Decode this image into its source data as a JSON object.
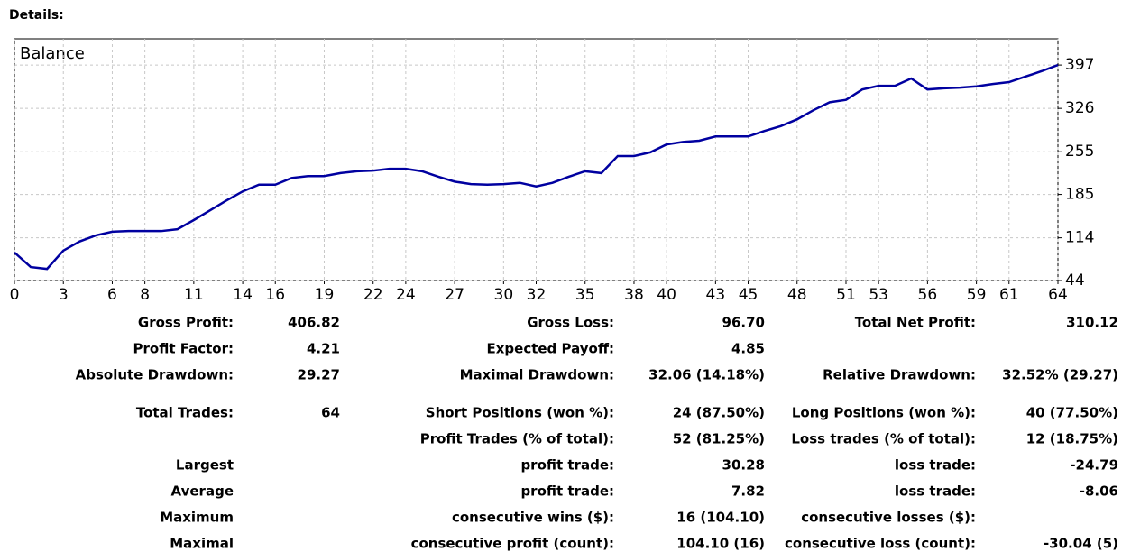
{
  "header": {
    "title": "Details:"
  },
  "chart_data": {
    "type": "line",
    "title": "Balance",
    "x": [
      0,
      1,
      2,
      3,
      4,
      5,
      6,
      7,
      8,
      9,
      10,
      11,
      12,
      13,
      14,
      15,
      16,
      17,
      18,
      19,
      20,
      21,
      22,
      23,
      24,
      25,
      26,
      27,
      28,
      29,
      30,
      31,
      32,
      33,
      34,
      35,
      36,
      37,
      38,
      39,
      40,
      41,
      42,
      43,
      44,
      45,
      46,
      47,
      48,
      49,
      50,
      51,
      52,
      53,
      54,
      55,
      56,
      57,
      58,
      59,
      60,
      61,
      62,
      63,
      64
    ],
    "series": [
      {
        "name": "Balance",
        "color": "#0000a0",
        "values": [
          90,
          66,
          63,
          93,
          108,
          118,
          124,
          125,
          125,
          125,
          128,
          143,
          159,
          175,
          190,
          201,
          201,
          212,
          215,
          215,
          220,
          223,
          224,
          227,
          227,
          223,
          214,
          206,
          202,
          201,
          202,
          204,
          198,
          204,
          214,
          223,
          220,
          248,
          248,
          254,
          267,
          271,
          273,
          280,
          280,
          280,
          289,
          297,
          308,
          323,
          336,
          340,
          357,
          363,
          363,
          375,
          357,
          359,
          360,
          362,
          366,
          369,
          378,
          387,
          397
        ]
      }
    ],
    "xlim": [
      0,
      64
    ],
    "xticks": [
      0,
      3,
      6,
      8,
      11,
      14,
      16,
      19,
      22,
      24,
      27,
      30,
      32,
      35,
      38,
      40,
      43,
      45,
      48,
      51,
      53,
      56,
      59,
      61,
      64
    ],
    "ylim": [
      44,
      440
    ],
    "yticks": [
      44,
      114,
      185,
      255,
      326,
      397
    ],
    "grid": true
  },
  "table": {
    "rows": [
      [
        "Gross Profit:",
        "406.82",
        "Gross Loss:",
        "96.70",
        "Total Net Profit:",
        "310.12"
      ],
      [
        "Profit Factor:",
        "4.21",
        "Expected Payoff:",
        "4.85",
        null,
        null
      ],
      [
        "Absolute Drawdown:",
        "29.27",
        "Maximal Drawdown:",
        "32.06 (14.18%)",
        "Relative Drawdown:",
        "32.52% (29.27)"
      ],
      [
        "Total Trades:",
        "64",
        "Short Positions (won %):",
        "24 (87.50%)",
        "Long Positions (won %):",
        "40 (77.50%)"
      ],
      [
        null,
        null,
        "Profit Trades (% of total):",
        "52 (81.25%)",
        "Loss trades (% of total):",
        "12 (18.75%)"
      ],
      [
        "Largest",
        null,
        "profit trade:",
        "30.28",
        "loss trade:",
        "-24.79"
      ],
      [
        "Average",
        null,
        "profit trade:",
        "7.82",
        "loss trade:",
        "-8.06"
      ],
      [
        "Maximum",
        null,
        "consecutive wins ($):",
        "16 (104.10)",
        "consecutive losses ($):",
        null
      ],
      [
        "Maximal",
        null,
        "consecutive profit (count):",
        "104.10 (16)",
        "consecutive loss (count):",
        "-30.04 (5)"
      ]
    ]
  }
}
